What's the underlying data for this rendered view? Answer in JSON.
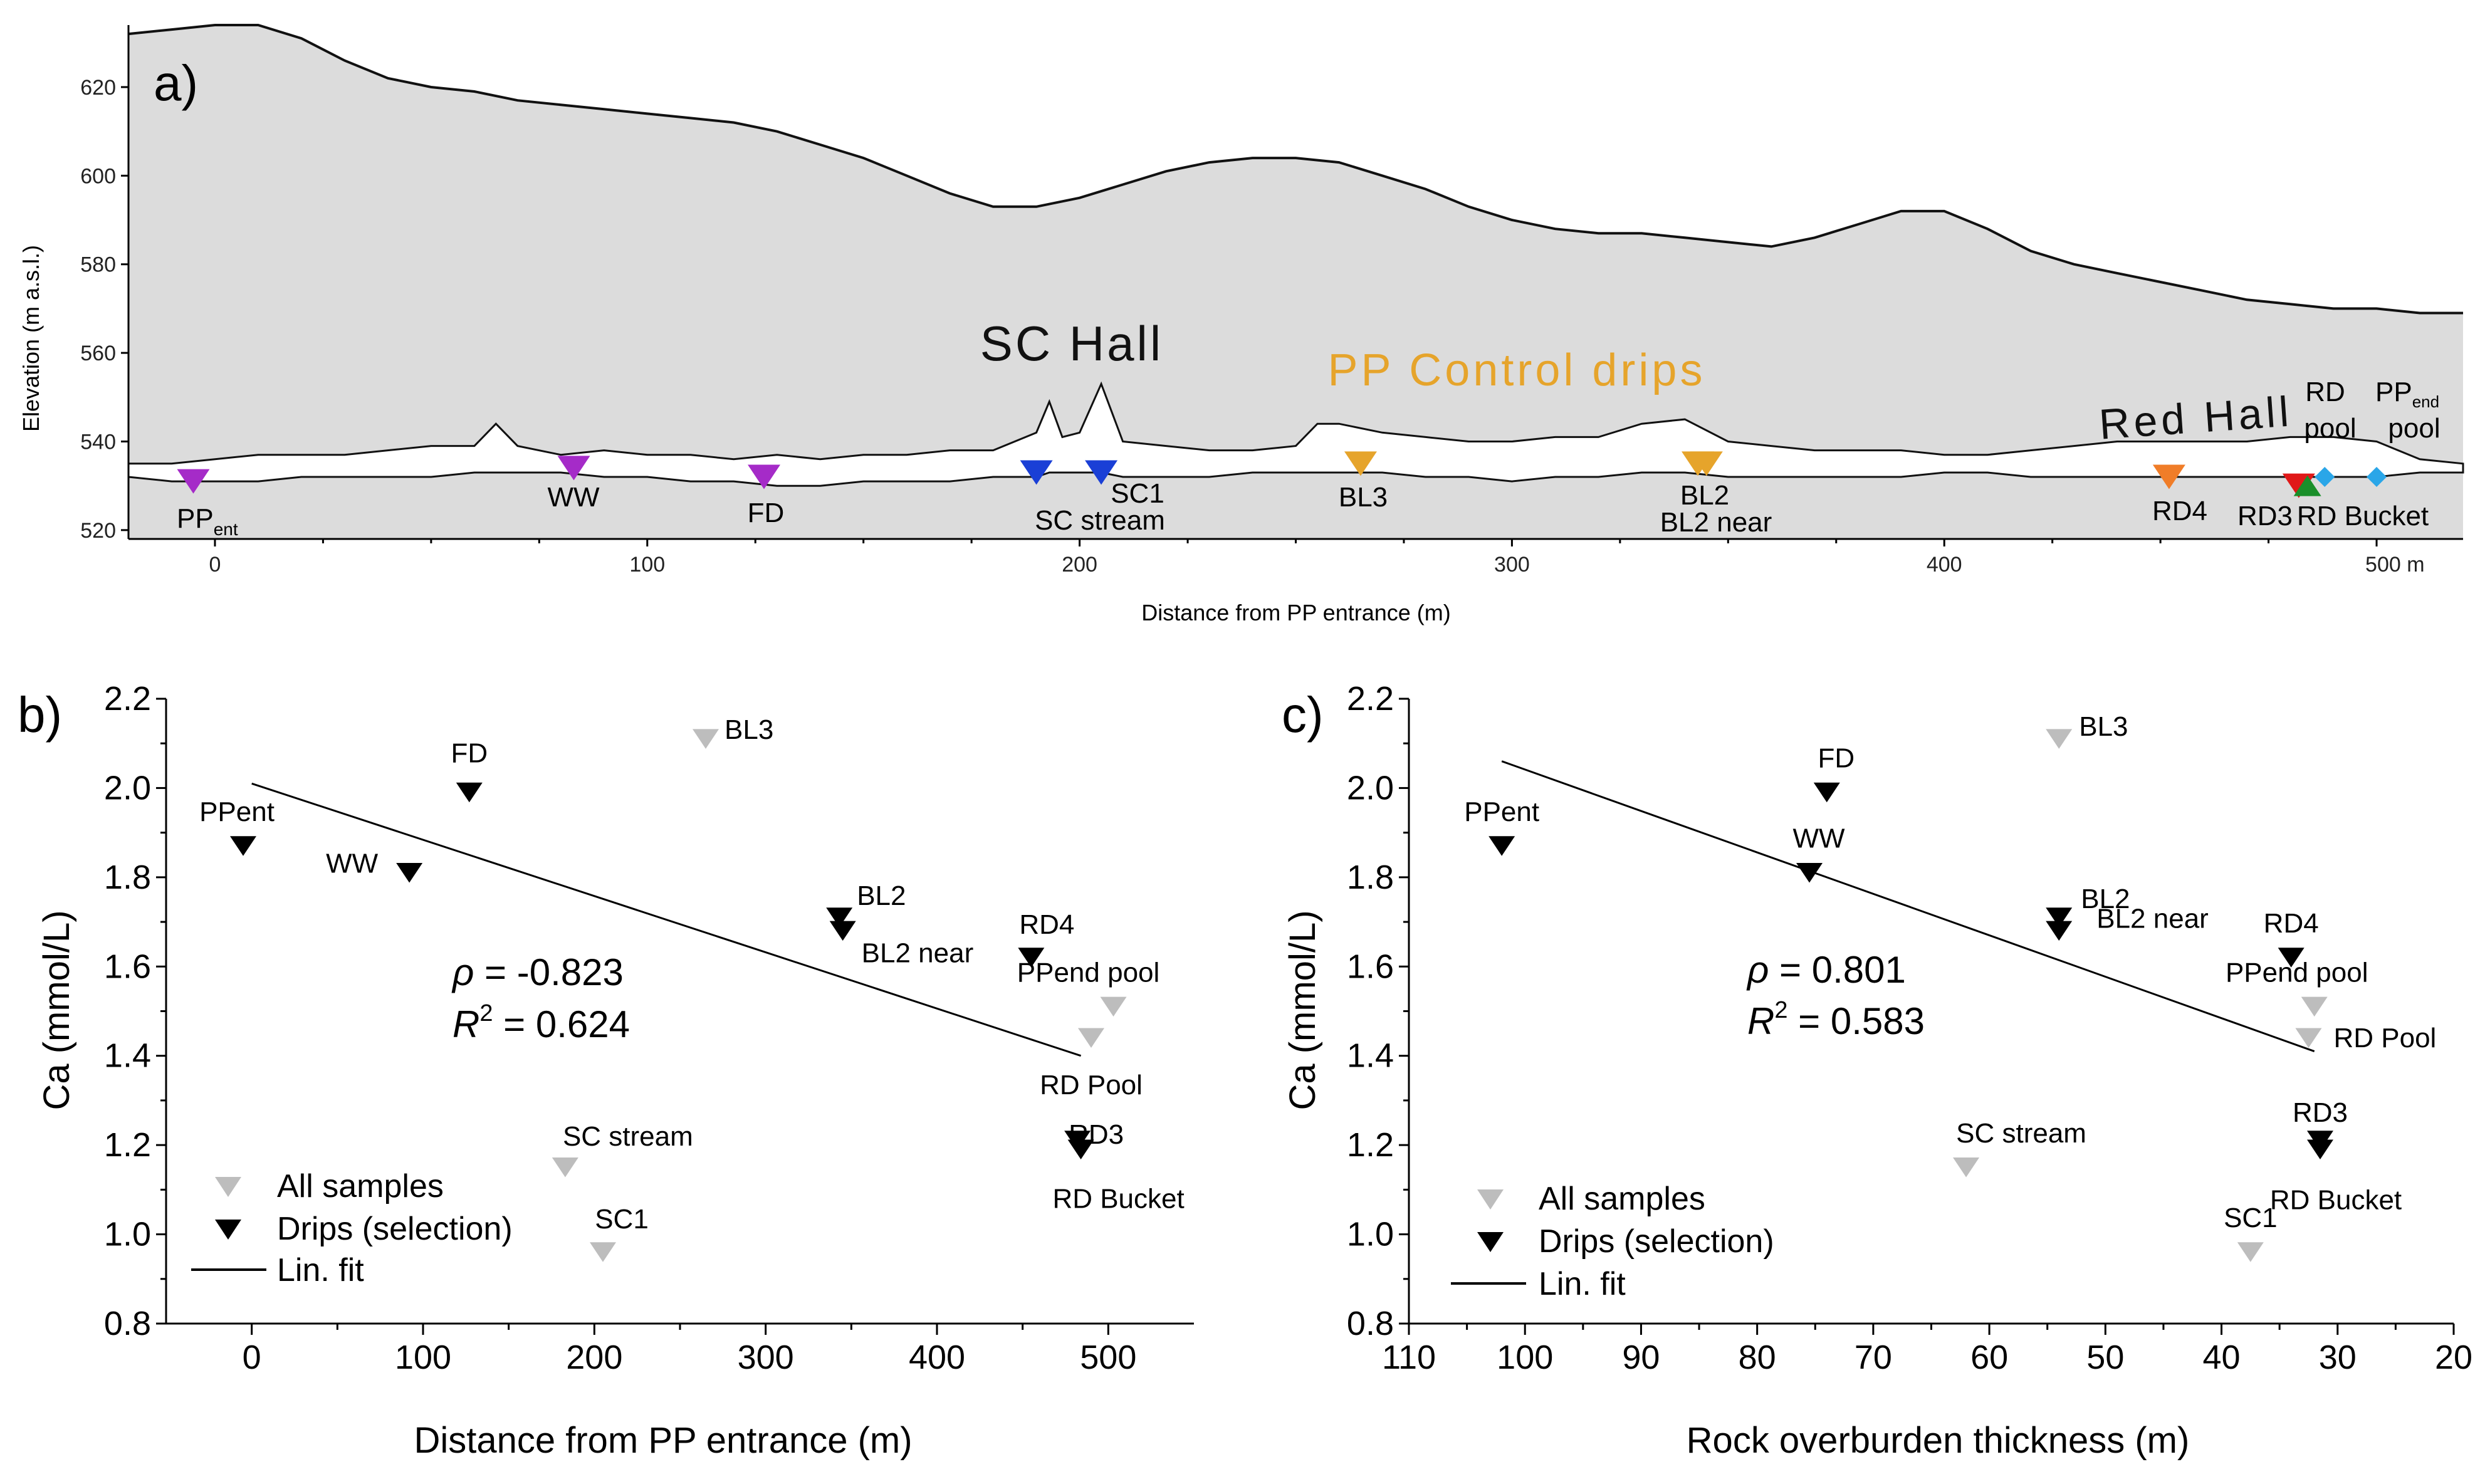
{
  "chart_data": [
    {
      "panel": "a)",
      "type": "area",
      "xlabel": "Distance from PP entrance (m)",
      "ylabel": "Elevation (m a.s.l.)",
      "xlim": [
        -20,
        520
      ],
      "ylim": [
        518,
        634
      ],
      "x_ticks": [
        0,
        100,
        200,
        300,
        400,
        500
      ],
      "x_tick_labels": [
        "0",
        "100",
        "200",
        "300",
        "400",
        "500 m"
      ],
      "y_ticks": [
        520,
        540,
        560,
        580,
        600,
        620
      ],
      "surface_profile": {
        "x": [
          -20,
          -10,
          0,
          5,
          10,
          20,
          30,
          40,
          50,
          60,
          70,
          80,
          90,
          100,
          110,
          120,
          130,
          140,
          150,
          160,
          170,
          180,
          190,
          200,
          210,
          220,
          230,
          240,
          250,
          260,
          270,
          280,
          290,
          300,
          310,
          320,
          330,
          340,
          350,
          360,
          370,
          380,
          390,
          400,
          410,
          420,
          430,
          440,
          450,
          460,
          470,
          480,
          490,
          500,
          510,
          520
        ],
        "elevation": [
          632,
          633,
          634,
          634,
          634,
          631,
          626,
          622,
          620,
          619,
          617,
          616,
          615,
          614,
          613,
          612,
          610,
          607,
          604,
          600,
          596,
          593,
          593,
          595,
          598,
          601,
          603,
          604,
          604,
          603,
          600,
          597,
          593,
          590,
          588,
          587,
          587,
          586,
          585,
          584,
          586,
          589,
          592,
          592,
          588,
          583,
          580,
          578,
          576,
          574,
          572,
          571,
          570,
          570,
          569,
          569
        ]
      },
      "cave_profile": {
        "x": [
          -20,
          -10,
          0,
          10,
          20,
          30,
          40,
          50,
          60,
          65,
          70,
          80,
          90,
          100,
          110,
          120,
          130,
          140,
          150,
          160,
          170,
          180,
          190,
          193,
          196,
          200,
          205,
          210,
          220,
          230,
          240,
          250,
          255,
          260,
          270,
          280,
          290,
          300,
          310,
          315,
          320,
          330,
          340,
          350,
          360,
          370,
          380,
          390,
          400,
          410,
          420,
          430,
          440,
          450,
          460,
          470,
          480,
          490,
          500,
          510,
          520
        ],
        "ceiling": [
          535,
          535,
          536,
          537,
          537,
          537,
          538,
          539,
          539,
          544,
          539,
          537,
          538,
          537,
          537,
          536,
          537,
          536,
          537,
          537,
          538,
          538,
          542,
          549,
          541,
          542,
          553,
          540,
          539,
          538,
          538,
          539,
          544,
          544,
          542,
          541,
          540,
          540,
          541,
          541,
          541,
          544,
          545,
          540,
          539,
          538,
          538,
          538,
          537,
          537,
          538,
          539,
          540,
          540,
          540,
          540,
          541,
          541,
          540,
          536,
          535
        ],
        "floor": [
          532,
          531,
          531,
          531,
          532,
          532,
          532,
          532,
          533,
          533,
          533,
          533,
          532,
          532,
          531,
          531,
          530,
          530,
          531,
          531,
          531,
          532,
          532,
          533,
          533,
          533,
          533,
          532,
          532,
          532,
          533,
          533,
          533,
          533,
          533,
          532,
          532,
          531,
          532,
          532,
          532,
          533,
          533,
          532,
          532,
          532,
          532,
          532,
          533,
          533,
          532,
          532,
          532,
          532,
          532,
          532,
          532,
          532,
          532,
          533,
          533
        ]
      },
      "hall_labels": [
        {
          "text": "SC Hall",
          "color": "#111111"
        },
        {
          "text": "PP Control drips",
          "color": "#e6a42b"
        },
        {
          "text": "Red Hall",
          "color": "#111111"
        }
      ],
      "sampling_sites": [
        {
          "label": "PP",
          "sub": "ent",
          "x": -5,
          "elev": 531,
          "color": "#a52bc8",
          "marker": "triangle-down"
        },
        {
          "label": "WW",
          "x": 83,
          "elev": 534,
          "color": "#a52bc8",
          "marker": "triangle-down"
        },
        {
          "label": "FD",
          "x": 127,
          "elev": 532,
          "color": "#a52bc8",
          "marker": "triangle-down"
        },
        {
          "label": "SC stream",
          "x": 190,
          "elev": 533,
          "color": "#1a3fd6",
          "marker": "triangle-down"
        },
        {
          "label": "SC1",
          "x": 205,
          "elev": 533,
          "color": "#1a3fd6",
          "marker": "triangle-down"
        },
        {
          "label": "BL3",
          "x": 265,
          "elev": 535,
          "color": "#e6a42b",
          "marker": "triangle-down"
        },
        {
          "label": "BL2",
          "x": 343,
          "elev": 535,
          "color": "#e6a42b",
          "marker": "triangle-down"
        },
        {
          "label": "BL2 near",
          "x": 345,
          "elev": 535,
          "color": "#e6a42b",
          "marker": "triangle-down"
        },
        {
          "label": "RD4",
          "x": 452,
          "elev": 532,
          "color": "#f07d28",
          "marker": "triangle-down"
        },
        {
          "label": "RD3",
          "x": 482,
          "elev": 530,
          "color": "#e01818",
          "marker": "triangle-down"
        },
        {
          "label": "RD Bucket",
          "x": 484,
          "elev": 530,
          "color": "#1a8f2a",
          "marker": "triangle-up"
        },
        {
          "label": "RD pool",
          "x": 488,
          "elev": 532,
          "color": "#2aa6e8",
          "marker": "diamond"
        },
        {
          "label": "PP",
          "sub": "end",
          "label2": "pool",
          "x": 500,
          "elev": 532,
          "color": "#2aa6e8",
          "marker": "diamond"
        }
      ],
      "site_text": {
        "ppent_main": "PP",
        "ppent_sub": "ent",
        "ww": "WW",
        "fd": "FD",
        "sc1": "SC1",
        "scstream": "SC stream",
        "bl3": "BL3",
        "bl2": "BL2",
        "bl2near": "BL2 near",
        "rd4": "RD4",
        "rd3": "RD3",
        "rdbucket": "RD Bucket",
        "rdpool_1": "RD",
        "rdpool_2": "pool",
        "ppend_main": "PP",
        "ppend_sub": "end",
        "ppend_2": "pool"
      }
    },
    {
      "panel": "b)",
      "type": "scatter",
      "xlabel": "Distance from PP entrance (m)",
      "ylabel": "Ca (mmol/L)",
      "xlim": [
        -50,
        550
      ],
      "ylim": [
        0.8,
        2.2
      ],
      "x_ticks": [
        0,
        100,
        200,
        300,
        400,
        500
      ],
      "y_ticks": [
        0.8,
        1.0,
        1.2,
        1.4,
        1.6,
        1.8,
        2.0,
        2.2
      ],
      "y_tick_labels": [
        "0.8",
        "1.0",
        "1.2",
        "1.4",
        "1.6",
        "1.8",
        "2.0",
        "2.2"
      ],
      "all_samples": [
        {
          "label": "BL3",
          "x": 265,
          "y": 2.11
        },
        {
          "label": "PPend pool",
          "x": 503,
          "y": 1.51
        },
        {
          "label": "RD Pool",
          "x": 490,
          "y": 1.44
        },
        {
          "label": "SC stream",
          "x": 183,
          "y": 1.15
        },
        {
          "label": "SC1",
          "x": 205,
          "y": 0.96
        }
      ],
      "drips": [
        {
          "label": "PPent",
          "x": -5,
          "y": 1.87
        },
        {
          "label": "WW",
          "x": 92,
          "y": 1.81
        },
        {
          "label": "FD",
          "x": 127,
          "y": 1.99
        },
        {
          "label": "BL2",
          "x": 343,
          "y": 1.71
        },
        {
          "label": "BL2 near",
          "x": 345,
          "y": 1.68
        },
        {
          "label": "RD4",
          "x": 455,
          "y": 1.62
        },
        {
          "label": "RD3",
          "x": 482,
          "y": 1.21
        },
        {
          "label": "RD Bucket",
          "x": 484,
          "y": 1.19
        }
      ],
      "fit": {
        "x": [
          0,
          484
        ],
        "y": [
          2.01,
          1.4
        ]
      },
      "stats": {
        "rho": "ρ",
        "rho_val": " = -0.823",
        "r": "R",
        "r_sup": "2",
        "r_val": " = 0.624"
      },
      "legend": [
        "All samples",
        "Drips (selection)",
        "Lin. fit"
      ],
      "colors": {
        "all": "#bdbdbd",
        "drips": "#000000",
        "fit": "#000000"
      }
    },
    {
      "panel": "c)",
      "type": "scatter",
      "xlabel": "Rock overburden thickness (m)",
      "ylabel": "Ca (mmol/L)",
      "xlim": [
        110,
        20
      ],
      "ylim": [
        0.8,
        2.2
      ],
      "x_ticks": [
        110,
        100,
        90,
        80,
        70,
        60,
        50,
        40,
        30,
        20
      ],
      "y_ticks": [
        0.8,
        1.0,
        1.2,
        1.4,
        1.6,
        1.8,
        2.0,
        2.2
      ],
      "y_tick_labels": [
        "0.8",
        "1.0",
        "1.2",
        "1.4",
        "1.6",
        "1.8",
        "2.0",
        "2.2"
      ],
      "all_samples": [
        {
          "label": "BL3",
          "x": 54,
          "y": 2.11
        },
        {
          "label": "PPend pool",
          "x": 32,
          "y": 1.51
        },
        {
          "label": "RD Pool",
          "x": 32.5,
          "y": 1.44
        },
        {
          "label": "SC stream",
          "x": 62,
          "y": 1.15
        },
        {
          "label": "SC1",
          "x": 37.5,
          "y": 0.96
        }
      ],
      "drips": [
        {
          "label": "PPent",
          "x": 102,
          "y": 1.87
        },
        {
          "label": "WW",
          "x": 75.5,
          "y": 1.81
        },
        {
          "label": "FD",
          "x": 74,
          "y": 1.99
        },
        {
          "label": "BL2",
          "x": 54,
          "y": 1.71
        },
        {
          "label": "BL2 near",
          "x": 54,
          "y": 1.68
        },
        {
          "label": "RD4",
          "x": 34,
          "y": 1.62
        },
        {
          "label": "RD3",
          "x": 31.5,
          "y": 1.21
        },
        {
          "label": "RD Bucket",
          "x": 31.5,
          "y": 1.19
        }
      ],
      "fit": {
        "x": [
          102,
          32
        ],
        "y": [
          2.06,
          1.41
        ]
      },
      "stats": {
        "rho": "ρ",
        "rho_val": " = 0.801",
        "r": "R",
        "r_sup": "2",
        "r_val": " = 0.583"
      },
      "legend": [
        "All samples",
        "Drips (selection)",
        "Lin. fit"
      ],
      "colors": {
        "all": "#bdbdbd",
        "drips": "#000000",
        "fit": "#000000"
      }
    }
  ]
}
